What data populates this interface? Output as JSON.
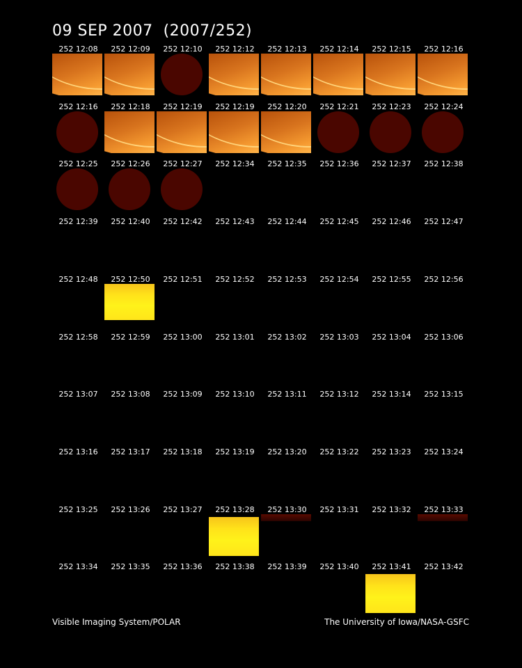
{
  "title": "09 SEP 2007  (2007/252)",
  "footer_left": "Visible Imaging System/POLAR",
  "footer_right": "The University of Iowa/NASA-GSFC",
  "colors": {
    "background": "#000000",
    "earth_orange": "#d8741e",
    "dark_disk": "#4a0600",
    "yellow_frame": "#ffe21a"
  },
  "frames": [
    {
      "label": "252 12:08",
      "kind": "earth"
    },
    {
      "label": "252 12:09",
      "kind": "earth"
    },
    {
      "label": "252 12:10",
      "kind": "disk"
    },
    {
      "label": "252 12:12",
      "kind": "earth"
    },
    {
      "label": "252 12:13",
      "kind": "earth"
    },
    {
      "label": "252 12:14",
      "kind": "earth"
    },
    {
      "label": "252 12:15",
      "kind": "earth"
    },
    {
      "label": "252 12:16",
      "kind": "earth"
    },
    {
      "label": "252 12:16",
      "kind": "disk"
    },
    {
      "label": "252 12:18",
      "kind": "earth"
    },
    {
      "label": "252 12:19",
      "kind": "earth"
    },
    {
      "label": "252 12:19",
      "kind": "earth"
    },
    {
      "label": "252 12:20",
      "kind": "earth"
    },
    {
      "label": "252 12:21",
      "kind": "disk"
    },
    {
      "label": "252 12:23",
      "kind": "disk"
    },
    {
      "label": "252 12:24",
      "kind": "disk"
    },
    {
      "label": "252 12:25",
      "kind": "disk"
    },
    {
      "label": "252 12:26",
      "kind": "disk"
    },
    {
      "label": "252 12:27",
      "kind": "disk"
    },
    {
      "label": "252 12:34",
      "kind": "none"
    },
    {
      "label": "252 12:35",
      "kind": "none"
    },
    {
      "label": "252 12:36",
      "kind": "none"
    },
    {
      "label": "252 12:37",
      "kind": "none"
    },
    {
      "label": "252 12:38",
      "kind": "none"
    },
    {
      "label": "252 12:39",
      "kind": "none"
    },
    {
      "label": "252 12:40",
      "kind": "none"
    },
    {
      "label": "252 12:42",
      "kind": "none"
    },
    {
      "label": "252 12:43",
      "kind": "none"
    },
    {
      "label": "252 12:44",
      "kind": "none"
    },
    {
      "label": "252 12:45",
      "kind": "none"
    },
    {
      "label": "252 12:46",
      "kind": "none"
    },
    {
      "label": "252 12:47",
      "kind": "none"
    },
    {
      "label": "252 12:48",
      "kind": "none"
    },
    {
      "label": "252 12:50",
      "kind": "yellow"
    },
    {
      "label": "252 12:51",
      "kind": "none"
    },
    {
      "label": "252 12:52",
      "kind": "none"
    },
    {
      "label": "252 12:53",
      "kind": "none"
    },
    {
      "label": "252 12:54",
      "kind": "none"
    },
    {
      "label": "252 12:55",
      "kind": "none"
    },
    {
      "label": "252 12:56",
      "kind": "none"
    },
    {
      "label": "252 12:58",
      "kind": "none"
    },
    {
      "label": "252 12:59",
      "kind": "none"
    },
    {
      "label": "252 13:00",
      "kind": "none"
    },
    {
      "label": "252 13:01",
      "kind": "none"
    },
    {
      "label": "252 13:02",
      "kind": "none"
    },
    {
      "label": "252 13:03",
      "kind": "none"
    },
    {
      "label": "252 13:04",
      "kind": "none"
    },
    {
      "label": "252 13:06",
      "kind": "none"
    },
    {
      "label": "252 13:07",
      "kind": "none"
    },
    {
      "label": "252 13:08",
      "kind": "none"
    },
    {
      "label": "252 13:09",
      "kind": "none"
    },
    {
      "label": "252 13:10",
      "kind": "none"
    },
    {
      "label": "252 13:11",
      "kind": "none"
    },
    {
      "label": "252 13:12",
      "kind": "none"
    },
    {
      "label": "252 13:14",
      "kind": "none"
    },
    {
      "label": "252 13:15",
      "kind": "none"
    },
    {
      "label": "252 13:16",
      "kind": "none"
    },
    {
      "label": "252 13:17",
      "kind": "none"
    },
    {
      "label": "252 13:18",
      "kind": "none"
    },
    {
      "label": "252 13:19",
      "kind": "none"
    },
    {
      "label": "252 13:20",
      "kind": "none"
    },
    {
      "label": "252 13:22",
      "kind": "none"
    },
    {
      "label": "252 13:23",
      "kind": "none"
    },
    {
      "label": "252 13:24",
      "kind": "none"
    },
    {
      "label": "252 13:25",
      "kind": "none"
    },
    {
      "label": "252 13:26",
      "kind": "none"
    },
    {
      "label": "252 13:27",
      "kind": "none"
    },
    {
      "label": "252 13:28",
      "kind": "yellow-full"
    },
    {
      "label": "252 13:30",
      "kind": "faintband"
    },
    {
      "label": "252 13:31",
      "kind": "none"
    },
    {
      "label": "252 13:32",
      "kind": "none"
    },
    {
      "label": "252 13:33",
      "kind": "faintband"
    },
    {
      "label": "252 13:34",
      "kind": "none"
    },
    {
      "label": "252 13:35",
      "kind": "none"
    },
    {
      "label": "252 13:36",
      "kind": "none"
    },
    {
      "label": "252 13:38",
      "kind": "none"
    },
    {
      "label": "252 13:39",
      "kind": "none"
    },
    {
      "label": "252 13:40",
      "kind": "none"
    },
    {
      "label": "252 13:41",
      "kind": "yellow-full"
    },
    {
      "label": "252 13:42",
      "kind": "none"
    }
  ]
}
